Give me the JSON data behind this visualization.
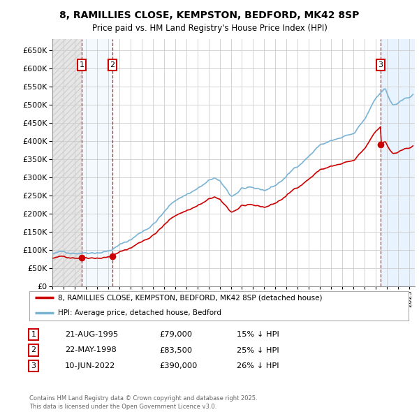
{
  "title1": "8, RAMILLIES CLOSE, KEMPSTON, BEDFORD, MK42 8SP",
  "title2": "Price paid vs. HM Land Registry's House Price Index (HPI)",
  "ylim": [
    0,
    680000
  ],
  "yticks": [
    0,
    50000,
    100000,
    150000,
    200000,
    250000,
    300000,
    350000,
    400000,
    450000,
    500000,
    550000,
    600000,
    650000
  ],
  "xlim_start": 1993.0,
  "xlim_end": 2025.5,
  "sale_dates": [
    1995.64,
    1998.39,
    2022.44
  ],
  "sale_prices": [
    79000,
    83500,
    390000
  ],
  "sale_labels": [
    "1",
    "2",
    "3"
  ],
  "hpi_line_color": "#7ab3d4",
  "sale_line_color": "#cc0000",
  "sale_dot_color": "#cc0000",
  "legend_property": "8, RAMILLIES CLOSE, KEMPSTON, BEDFORD, MK42 8SP (detached house)",
  "legend_hpi": "HPI: Average price, detached house, Bedford",
  "table_entries": [
    {
      "label": "1",
      "date": "21-AUG-1995",
      "price": "£79,000",
      "note": "15% ↓ HPI"
    },
    {
      "label": "2",
      "date": "22-MAY-1998",
      "price": "£83,500",
      "note": "25% ↓ HPI"
    },
    {
      "label": "3",
      "date": "10-JUN-2022",
      "price": "£390,000",
      "note": "26% ↓ HPI"
    }
  ],
  "footnote": "Contains HM Land Registry data © Crown copyright and database right 2025.\nThis data is licensed under the Open Government Licence v3.0.",
  "bg_color": "#ffffff",
  "grid_color": "#cccccc",
  "left_shade_color": "#e8e8e8",
  "right_shade_color": "#ddeeff"
}
